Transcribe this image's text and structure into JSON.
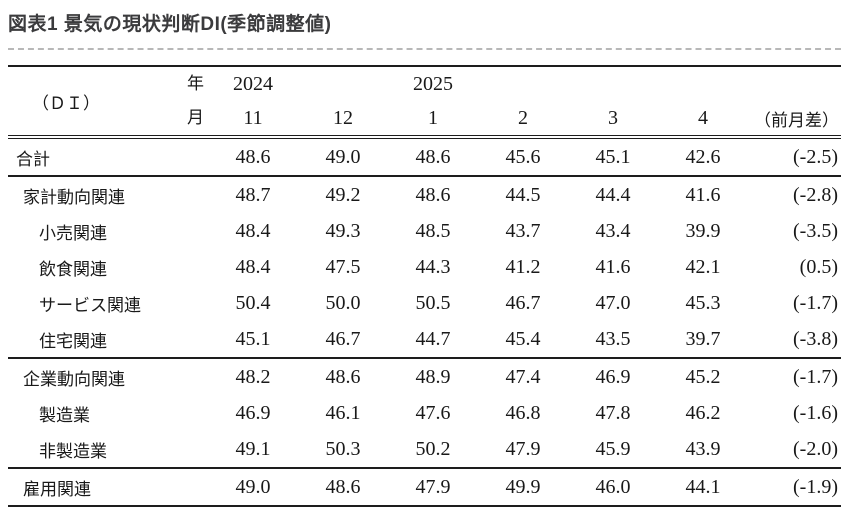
{
  "title": "図表1 景気の現状判断DI(季節調整値)",
  "colors": {
    "title_text": "#3b3b3d",
    "table_text": "#191919",
    "table_border": "#1d1d1d",
    "divider_dashed": "#b8b8b8"
  },
  "table": {
    "corner_label": "（ＤＩ）",
    "year_label": "年",
    "month_label": "月",
    "year_2024": "2024",
    "year_2025": "2025",
    "months": [
      "11",
      "12",
      "1",
      "2",
      "3",
      "4",
      "（前月差）"
    ],
    "rows": [
      {
        "label": "合計",
        "values": [
          "48.6",
          "49.0",
          "48.6",
          "45.6",
          "45.1",
          "42.6"
        ],
        "diff": "(-2.5)"
      },
      {
        "label": "家計動向関連",
        "values": [
          "48.7",
          "49.2",
          "48.6",
          "44.5",
          "44.4",
          "41.6"
        ],
        "diff": "(-2.8)"
      },
      {
        "label": "小売関連",
        "values": [
          "48.4",
          "49.3",
          "48.5",
          "43.7",
          "43.4",
          "39.9"
        ],
        "diff": "(-3.5)"
      },
      {
        "label": "飲食関連",
        "values": [
          "48.4",
          "47.5",
          "44.3",
          "41.2",
          "41.6",
          "42.1"
        ],
        "diff": "(0.5)"
      },
      {
        "label": "サービス関連",
        "values": [
          "50.4",
          "50.0",
          "50.5",
          "46.7",
          "47.0",
          "45.3"
        ],
        "diff": "(-1.7)"
      },
      {
        "label": "住宅関連",
        "values": [
          "45.1",
          "46.7",
          "44.7",
          "45.4",
          "43.5",
          "39.7"
        ],
        "diff": "(-3.8)"
      },
      {
        "label": "企業動向関連",
        "values": [
          "48.2",
          "48.6",
          "48.9",
          "47.4",
          "46.9",
          "45.2"
        ],
        "diff": "(-1.7)"
      },
      {
        "label": "製造業",
        "values": [
          "46.9",
          "46.1",
          "47.6",
          "46.8",
          "47.8",
          "46.2"
        ],
        "diff": "(-1.6)"
      },
      {
        "label": "非製造業",
        "values": [
          "49.1",
          "50.3",
          "50.2",
          "47.9",
          "45.9",
          "43.9"
        ],
        "diff": "(-2.0)"
      },
      {
        "label": "雇用関連",
        "values": [
          "49.0",
          "48.6",
          "47.9",
          "49.9",
          "46.0",
          "44.1"
        ],
        "diff": "(-1.9)"
      }
    ]
  },
  "chart_data": {
    "type": "table",
    "title": "図表1 景気の現状判断DI(季節調整値)",
    "columns": [
      "2024-11",
      "2024-12",
      "2025-1",
      "2025-2",
      "2025-3",
      "2025-4"
    ],
    "mom_change_column": "前月差",
    "series": [
      {
        "name": "合計",
        "values": [
          48.6,
          49.0,
          48.6,
          45.6,
          45.1,
          42.6
        ],
        "mom_change": -2.5
      },
      {
        "name": "家計動向関連",
        "values": [
          48.7,
          49.2,
          48.6,
          44.5,
          44.4,
          41.6
        ],
        "mom_change": -2.8
      },
      {
        "name": "小売関連",
        "values": [
          48.4,
          49.3,
          48.5,
          43.7,
          43.4,
          39.9
        ],
        "mom_change": -3.5
      },
      {
        "name": "飲食関連",
        "values": [
          48.4,
          47.5,
          44.3,
          41.2,
          41.6,
          42.1
        ],
        "mom_change": 0.5
      },
      {
        "name": "サービス関連",
        "values": [
          50.4,
          50.0,
          50.5,
          46.7,
          47.0,
          45.3
        ],
        "mom_change": -1.7
      },
      {
        "name": "住宅関連",
        "values": [
          45.1,
          46.7,
          44.7,
          45.4,
          43.5,
          39.7
        ],
        "mom_change": -3.8
      },
      {
        "name": "企業動向関連",
        "values": [
          48.2,
          48.6,
          48.9,
          47.4,
          46.9,
          45.2
        ],
        "mom_change": -1.7
      },
      {
        "name": "製造業",
        "values": [
          46.9,
          46.1,
          47.6,
          46.8,
          47.8,
          46.2
        ],
        "mom_change": -1.6
      },
      {
        "name": "非製造業",
        "values": [
          49.1,
          50.3,
          50.2,
          47.9,
          45.9,
          43.9
        ],
        "mom_change": -2.0
      },
      {
        "name": "雇用関連",
        "values": [
          49.0,
          48.6,
          47.9,
          49.9,
          46.0,
          44.1
        ],
        "mom_change": -1.9
      }
    ]
  }
}
